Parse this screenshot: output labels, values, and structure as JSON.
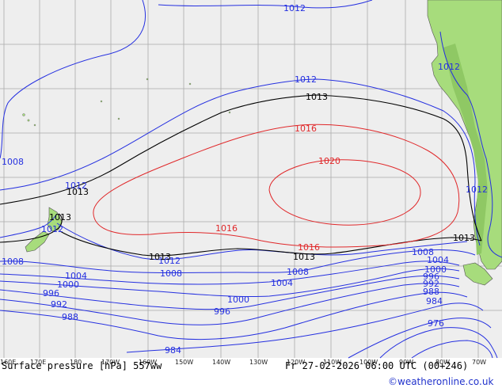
{
  "map": {
    "title": "Surface pressure [hPa] 557ww",
    "valid_time": "Fr 27-02-2026 06:00 UTC (00+246)",
    "credit": "©weatheronline.co.uk",
    "colors": {
      "ocean": "#eeeeee",
      "land": "#a7dc7c",
      "grid": "#aaaaaa",
      "isobar_low": "#2530e0",
      "isobar_high": "#e0282a",
      "isobar_ref": "#000000"
    },
    "lon_ticks": [
      "160E",
      "170E",
      "180",
      "170W",
      "160W",
      "150W",
      "140W",
      "130W",
      "120W",
      "110W",
      "100W",
      "90W",
      "80W",
      "70W"
    ],
    "isobar_labels": {
      "l1012_top": "1012",
      "l1012_rtop": "1012",
      "l1012_mid": "1012",
      "l1012_right": "1012",
      "l1012_left": "1012",
      "l1012_nz": "1012",
      "l1012_bl": "1012",
      "l1013_top": "1013",
      "l1013_left": "1013",
      "l1013_nz": "1013",
      "l1013_bl": "1013",
      "l1013_bm": "1013",
      "l1013_br": "1013",
      "l1016_top": "1016",
      "l1016_bl": "1016",
      "l1016_bm": "1016",
      "l1020": "1020",
      "l1008_left": "1008",
      "l1008_lw": "1008",
      "l1008_mid": "1008",
      "l1008_cm": "1008",
      "l1008_r": "1008",
      "l1004_l": "1004",
      "l1004_m": "1004",
      "l1004_r": "1004",
      "l1000_l": "1000",
      "l1000_m": "1000",
      "l1000_r": "1000",
      "l996_l": "996",
      "l996_m": "996",
      "l996_r": "996",
      "l992_l": "992",
      "l992_r": "992",
      "l988_l": "988",
      "l988_r": "988",
      "l984_b": "984",
      "l984_r": "984",
      "l976": "976"
    }
  }
}
